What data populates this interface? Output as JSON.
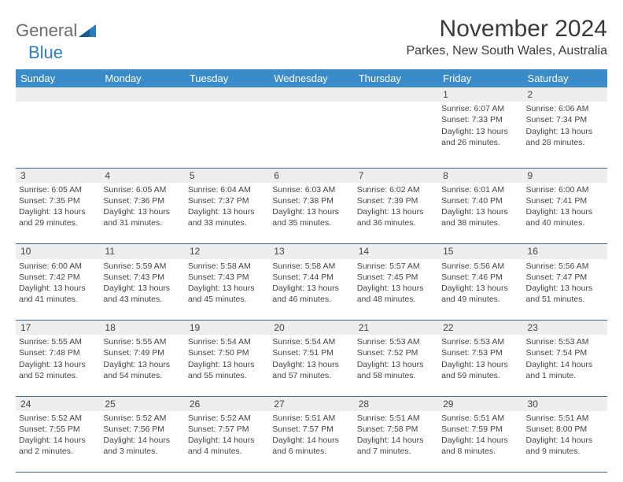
{
  "brand": {
    "part1": "General",
    "part2": "Blue"
  },
  "title": "November 2024",
  "location": "Parkes, New South Wales, Australia",
  "colors": {
    "header_bg": "#3a8bc9",
    "header_text": "#ffffff",
    "daynum_bg": "#eeeeee",
    "row_border": "#3a6a95",
    "brand_gray": "#6a6a6a",
    "brand_blue": "#2e7dc1",
    "text": "#444444",
    "page_bg": "#ffffff"
  },
  "weekdays": [
    "Sunday",
    "Monday",
    "Tuesday",
    "Wednesday",
    "Thursday",
    "Friday",
    "Saturday"
  ],
  "weeks": [
    {
      "nums": [
        "",
        "",
        "",
        "",
        "",
        "1",
        "2"
      ],
      "cells": [
        null,
        null,
        null,
        null,
        null,
        {
          "sunrise": "Sunrise: 6:07 AM",
          "sunset": "Sunset: 7:33 PM",
          "day1": "Daylight: 13 hours",
          "day2": "and 26 minutes."
        },
        {
          "sunrise": "Sunrise: 6:06 AM",
          "sunset": "Sunset: 7:34 PM",
          "day1": "Daylight: 13 hours",
          "day2": "and 28 minutes."
        }
      ]
    },
    {
      "nums": [
        "3",
        "4",
        "5",
        "6",
        "7",
        "8",
        "9"
      ],
      "cells": [
        {
          "sunrise": "Sunrise: 6:05 AM",
          "sunset": "Sunset: 7:35 PM",
          "day1": "Daylight: 13 hours",
          "day2": "and 29 minutes."
        },
        {
          "sunrise": "Sunrise: 6:05 AM",
          "sunset": "Sunset: 7:36 PM",
          "day1": "Daylight: 13 hours",
          "day2": "and 31 minutes."
        },
        {
          "sunrise": "Sunrise: 6:04 AM",
          "sunset": "Sunset: 7:37 PM",
          "day1": "Daylight: 13 hours",
          "day2": "and 33 minutes."
        },
        {
          "sunrise": "Sunrise: 6:03 AM",
          "sunset": "Sunset: 7:38 PM",
          "day1": "Daylight: 13 hours",
          "day2": "and 35 minutes."
        },
        {
          "sunrise": "Sunrise: 6:02 AM",
          "sunset": "Sunset: 7:39 PM",
          "day1": "Daylight: 13 hours",
          "day2": "and 36 minutes."
        },
        {
          "sunrise": "Sunrise: 6:01 AM",
          "sunset": "Sunset: 7:40 PM",
          "day1": "Daylight: 13 hours",
          "day2": "and 38 minutes."
        },
        {
          "sunrise": "Sunrise: 6:00 AM",
          "sunset": "Sunset: 7:41 PM",
          "day1": "Daylight: 13 hours",
          "day2": "and 40 minutes."
        }
      ]
    },
    {
      "nums": [
        "10",
        "11",
        "12",
        "13",
        "14",
        "15",
        "16"
      ],
      "cells": [
        {
          "sunrise": "Sunrise: 6:00 AM",
          "sunset": "Sunset: 7:42 PM",
          "day1": "Daylight: 13 hours",
          "day2": "and 41 minutes."
        },
        {
          "sunrise": "Sunrise: 5:59 AM",
          "sunset": "Sunset: 7:43 PM",
          "day1": "Daylight: 13 hours",
          "day2": "and 43 minutes."
        },
        {
          "sunrise": "Sunrise: 5:58 AM",
          "sunset": "Sunset: 7:43 PM",
          "day1": "Daylight: 13 hours",
          "day2": "and 45 minutes."
        },
        {
          "sunrise": "Sunrise: 5:58 AM",
          "sunset": "Sunset: 7:44 PM",
          "day1": "Daylight: 13 hours",
          "day2": "and 46 minutes."
        },
        {
          "sunrise": "Sunrise: 5:57 AM",
          "sunset": "Sunset: 7:45 PM",
          "day1": "Daylight: 13 hours",
          "day2": "and 48 minutes."
        },
        {
          "sunrise": "Sunrise: 5:56 AM",
          "sunset": "Sunset: 7:46 PM",
          "day1": "Daylight: 13 hours",
          "day2": "and 49 minutes."
        },
        {
          "sunrise": "Sunrise: 5:56 AM",
          "sunset": "Sunset: 7:47 PM",
          "day1": "Daylight: 13 hours",
          "day2": "and 51 minutes."
        }
      ]
    },
    {
      "nums": [
        "17",
        "18",
        "19",
        "20",
        "21",
        "22",
        "23"
      ],
      "cells": [
        {
          "sunrise": "Sunrise: 5:55 AM",
          "sunset": "Sunset: 7:48 PM",
          "day1": "Daylight: 13 hours",
          "day2": "and 52 minutes."
        },
        {
          "sunrise": "Sunrise: 5:55 AM",
          "sunset": "Sunset: 7:49 PM",
          "day1": "Daylight: 13 hours",
          "day2": "and 54 minutes."
        },
        {
          "sunrise": "Sunrise: 5:54 AM",
          "sunset": "Sunset: 7:50 PM",
          "day1": "Daylight: 13 hours",
          "day2": "and 55 minutes."
        },
        {
          "sunrise": "Sunrise: 5:54 AM",
          "sunset": "Sunset: 7:51 PM",
          "day1": "Daylight: 13 hours",
          "day2": "and 57 minutes."
        },
        {
          "sunrise": "Sunrise: 5:53 AM",
          "sunset": "Sunset: 7:52 PM",
          "day1": "Daylight: 13 hours",
          "day2": "and 58 minutes."
        },
        {
          "sunrise": "Sunrise: 5:53 AM",
          "sunset": "Sunset: 7:53 PM",
          "day1": "Daylight: 13 hours",
          "day2": "and 59 minutes."
        },
        {
          "sunrise": "Sunrise: 5:53 AM",
          "sunset": "Sunset: 7:54 PM",
          "day1": "Daylight: 14 hours",
          "day2": "and 1 minute."
        }
      ]
    },
    {
      "nums": [
        "24",
        "25",
        "26",
        "27",
        "28",
        "29",
        "30"
      ],
      "cells": [
        {
          "sunrise": "Sunrise: 5:52 AM",
          "sunset": "Sunset: 7:55 PM",
          "day1": "Daylight: 14 hours",
          "day2": "and 2 minutes."
        },
        {
          "sunrise": "Sunrise: 5:52 AM",
          "sunset": "Sunset: 7:56 PM",
          "day1": "Daylight: 14 hours",
          "day2": "and 3 minutes."
        },
        {
          "sunrise": "Sunrise: 5:52 AM",
          "sunset": "Sunset: 7:57 PM",
          "day1": "Daylight: 14 hours",
          "day2": "and 4 minutes."
        },
        {
          "sunrise": "Sunrise: 5:51 AM",
          "sunset": "Sunset: 7:57 PM",
          "day1": "Daylight: 14 hours",
          "day2": "and 6 minutes."
        },
        {
          "sunrise": "Sunrise: 5:51 AM",
          "sunset": "Sunset: 7:58 PM",
          "day1": "Daylight: 14 hours",
          "day2": "and 7 minutes."
        },
        {
          "sunrise": "Sunrise: 5:51 AM",
          "sunset": "Sunset: 7:59 PM",
          "day1": "Daylight: 14 hours",
          "day2": "and 8 minutes."
        },
        {
          "sunrise": "Sunrise: 5:51 AM",
          "sunset": "Sunset: 8:00 PM",
          "day1": "Daylight: 14 hours",
          "day2": "and 9 minutes."
        }
      ]
    }
  ]
}
